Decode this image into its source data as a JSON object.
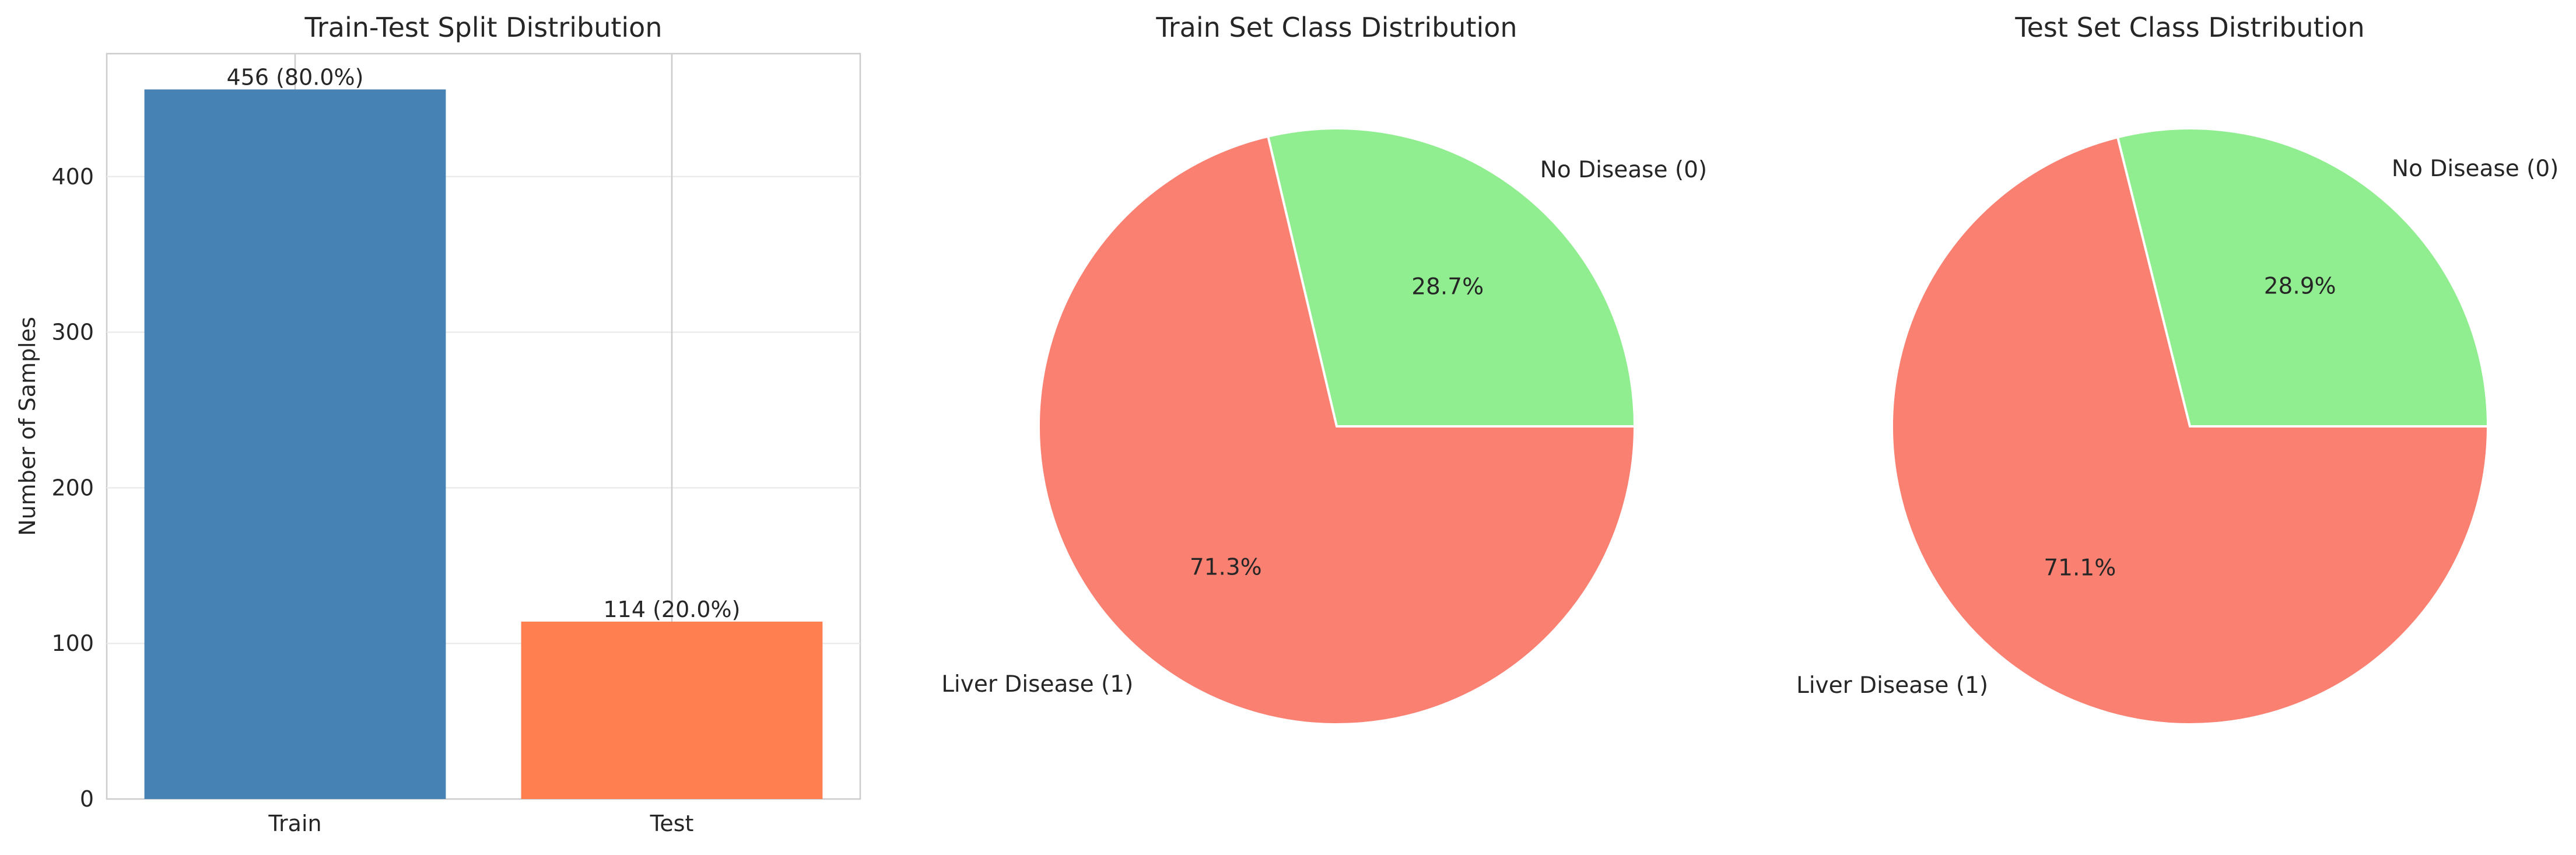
{
  "chart_data": [
    {
      "type": "bar",
      "title": "Train-Test Split Distribution",
      "xlabel": "",
      "ylabel": "Number of Samples",
      "categories": [
        "Train",
        "Test"
      ],
      "values": [
        456,
        114
      ],
      "data_labels": [
        "456 (80.0%)",
        "114 (20.0%)"
      ],
      "colors": [
        "#4682b4",
        "#ff7f50"
      ],
      "ylim": [
        0,
        479
      ],
      "yticks": [
        0,
        100,
        200,
        300,
        400
      ],
      "grid": true
    },
    {
      "type": "pie",
      "title": "Train Set Class Distribution",
      "labels": [
        "No Disease (0)",
        "Liver Disease (1)"
      ],
      "values": [
        28.7,
        71.3
      ],
      "pct_labels": [
        "28.7%",
        "71.3%"
      ],
      "colors": [
        "#90ee90",
        "#fa8072"
      ]
    },
    {
      "type": "pie",
      "title": "Test Set Class Distribution",
      "labels": [
        "No Disease (0)",
        "Liver Disease (1)"
      ],
      "values": [
        28.9,
        71.1
      ],
      "pct_labels": [
        "28.9%",
        "71.1%"
      ],
      "colors": [
        "#90ee90",
        "#fa8072"
      ]
    }
  ]
}
